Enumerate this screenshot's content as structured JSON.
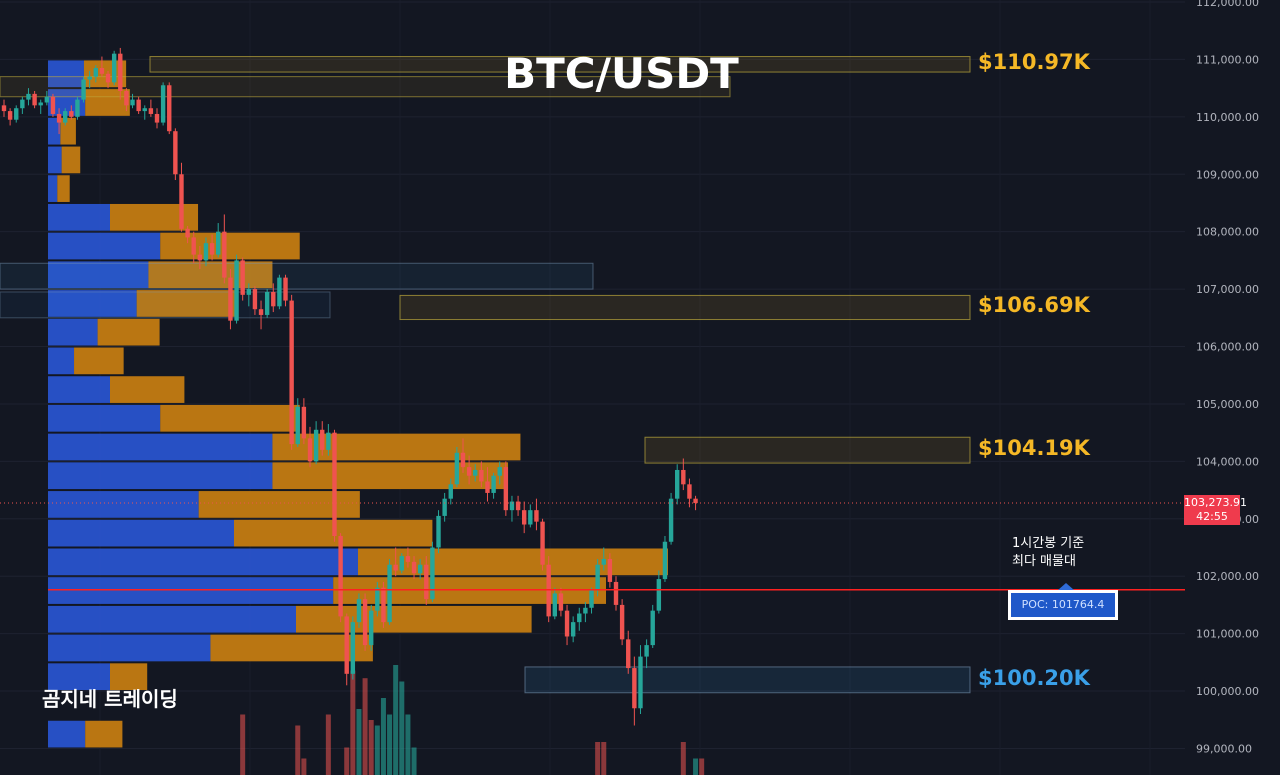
{
  "title": "BTC/USDT",
  "brand": "곰지네 트레이딩",
  "note_line1": "1시간봉 기준",
  "note_line2": "최다 매물대",
  "poc_label": "POC: 101764.4",
  "current_price": "103,273.91",
  "countdown": "42:55",
  "colors": {
    "background": "#131722",
    "up": "#26a69a",
    "down": "#ef5350",
    "buy_volume": "#2a56d6",
    "sell_volume": "#d8870f",
    "poc_line": "#ff2020",
    "resistance": "#f5b826",
    "support": "#3aa0e8"
  },
  "chart_data": {
    "type": "candlestick",
    "y_axis": {
      "min": 98700,
      "max": 112000,
      "ticks": [
        "112,000.00",
        "111,000.00",
        "110,000.00",
        "109,000.00",
        "108,000.00",
        "107,000.00",
        "106,000.00",
        "105,000.00",
        "104,000.00",
        "103,000.00",
        "102,000.00",
        "101,000.00",
        "100,000.00",
        "99,000.00"
      ]
    },
    "zones": [
      {
        "label": "$110.97K",
        "low": 110780,
        "high": 111050,
        "color": "resistance"
      },
      {
        "label": "$106.69K",
        "low": 106470,
        "high": 106890,
        "color": "resistance"
      },
      {
        "label": "$104.19K",
        "low": 103970,
        "high": 104420,
        "color": "resistance"
      },
      {
        "label": "$100.20K",
        "low": 99970,
        "high": 100420,
        "color": "support"
      }
    ],
    "poc_price": 101764.4,
    "last_price": 103273.91,
    "candles": [
      [
        110200,
        110300,
        110000,
        110100
      ],
      [
        110100,
        110150,
        109850,
        109950
      ],
      [
        109950,
        110200,
        109900,
        110150
      ],
      [
        110150,
        110350,
        110050,
        110300
      ],
      [
        110300,
        110500,
        110200,
        110400
      ],
      [
        110400,
        110450,
        110150,
        110200
      ],
      [
        110200,
        110300,
        110050,
        110250
      ],
      [
        110250,
        110450,
        110200,
        110350
      ],
      [
        110350,
        110400,
        110000,
        110050
      ],
      [
        110050,
        110150,
        109700,
        109900
      ],
      [
        109900,
        110150,
        109850,
        110100
      ],
      [
        110100,
        110200,
        109950,
        110000
      ],
      [
        110000,
        110350,
        109950,
        110300
      ],
      [
        110300,
        110700,
        110250,
        110650
      ],
      [
        110650,
        110800,
        110500,
        110700
      ],
      [
        110700,
        110900,
        110600,
        110850
      ],
      [
        110850,
        111050,
        110700,
        110750
      ],
      [
        110750,
        110800,
        110500,
        110600
      ],
      [
        110600,
        111150,
        110550,
        111100
      ],
      [
        111100,
        111200,
        110300,
        110450
      ],
      [
        110450,
        110500,
        110100,
        110200
      ],
      [
        110200,
        110400,
        110150,
        110300
      ],
      [
        110300,
        110350,
        110050,
        110100
      ],
      [
        110100,
        110200,
        109950,
        110150
      ],
      [
        110150,
        110300,
        110000,
        110050
      ],
      [
        110050,
        110150,
        109800,
        109900
      ],
      [
        109900,
        110600,
        109850,
        110550
      ],
      [
        110550,
        110600,
        109700,
        109750
      ],
      [
        109750,
        109800,
        108900,
        109000
      ],
      [
        109000,
        109200,
        108000,
        108050
      ],
      [
        108050,
        108100,
        107800,
        107900
      ],
      [
        107900,
        108000,
        107450,
        107600
      ],
      [
        107600,
        107750,
        107350,
        107500
      ],
      [
        107500,
        107900,
        107400,
        107800
      ],
      [
        107800,
        107950,
        107500,
        107600
      ],
      [
        107600,
        108150,
        107550,
        108000
      ],
      [
        108000,
        108300,
        107100,
        107200
      ],
      [
        107200,
        107350,
        106300,
        106450
      ],
      [
        106450,
        107600,
        106400,
        107500
      ],
      [
        107500,
        107550,
        106800,
        106900
      ],
      [
        106900,
        107100,
        106700,
        107000
      ],
      [
        107000,
        107050,
        106550,
        106650
      ],
      [
        106650,
        106800,
        106300,
        106550
      ],
      [
        106550,
        107000,
        106500,
        106950
      ],
      [
        106950,
        107100,
        106600,
        106700
      ],
      [
        106700,
        107250,
        106650,
        107200
      ],
      [
        107200,
        107250,
        106700,
        106800
      ],
      [
        106800,
        106900,
        104200,
        104300
      ],
      [
        104300,
        105100,
        104250,
        104950
      ],
      [
        104950,
        105100,
        104300,
        104400
      ],
      [
        104400,
        104600,
        103900,
        104000
      ],
      [
        104000,
        104700,
        103950,
        104550
      ],
      [
        104550,
        104700,
        104100,
        104200
      ],
      [
        104200,
        104650,
        104100,
        104500
      ],
      [
        104500,
        104550,
        102600,
        102700
      ],
      [
        102700,
        102750,
        101200,
        101300
      ],
      [
        101300,
        101350,
        100100,
        100300
      ],
      [
        100300,
        101300,
        100200,
        101200
      ],
      [
        101200,
        101700,
        101100,
        101600
      ],
      [
        101600,
        101700,
        100700,
        100800
      ],
      [
        100800,
        101500,
        100700,
        101400
      ],
      [
        101400,
        101900,
        101300,
        101800
      ],
      [
        101800,
        101900,
        101100,
        101200
      ],
      [
        101200,
        102300,
        101150,
        102200
      ],
      [
        102200,
        102500,
        102000,
        102100
      ],
      [
        102100,
        102400,
        102050,
        102350
      ],
      [
        102350,
        102500,
        102150,
        102250
      ],
      [
        102250,
        102350,
        101950,
        102050
      ],
      [
        102050,
        102300,
        101950,
        102200
      ],
      [
        102200,
        102350,
        101500,
        101600
      ],
      [
        101600,
        102600,
        101550,
        102500
      ],
      [
        102500,
        103150,
        102400,
        103050
      ],
      [
        103050,
        103450,
        102950,
        103350
      ],
      [
        103350,
        103700,
        103250,
        103600
      ],
      [
        103600,
        104250,
        103550,
        104150
      ],
      [
        104150,
        104400,
        103800,
        103900
      ],
      [
        103900,
        104100,
        103600,
        103750
      ],
      [
        103750,
        103950,
        103650,
        103850
      ],
      [
        103850,
        104000,
        103550,
        103650
      ],
      [
        103650,
        103900,
        103300,
        103450
      ],
      [
        103450,
        103800,
        103350,
        103750
      ],
      [
        103750,
        104000,
        103600,
        103900
      ],
      [
        103900,
        104000,
        103050,
        103150
      ],
      [
        103150,
        103400,
        102950,
        103300
      ],
      [
        103300,
        103400,
        103050,
        103150
      ],
      [
        103150,
        103300,
        102750,
        102900
      ],
      [
        102900,
        103250,
        102850,
        103150
      ],
      [
        103150,
        103350,
        102800,
        102950
      ],
      [
        102950,
        103000,
        102100,
        102200
      ],
      [
        102200,
        102350,
        101200,
        101300
      ],
      [
        101300,
        101800,
        101250,
        101700
      ],
      [
        101700,
        101800,
        101300,
        101400
      ],
      [
        101400,
        101500,
        100800,
        100950
      ],
      [
        100950,
        101300,
        100850,
        101200
      ],
      [
        101200,
        101450,
        101050,
        101350
      ],
      [
        101350,
        101550,
        101200,
        101450
      ],
      [
        101450,
        101800,
        101350,
        101750
      ],
      [
        101750,
        102300,
        101650,
        102200
      ],
      [
        102200,
        102500,
        102100,
        102300
      ],
      [
        102300,
        102400,
        101800,
        101900
      ],
      [
        101900,
        102000,
        101400,
        101500
      ],
      [
        101500,
        101600,
        100800,
        100900
      ],
      [
        100900,
        101050,
        100300,
        100400
      ],
      [
        100400,
        100600,
        99400,
        99700
      ],
      [
        99700,
        100800,
        99600,
        100600
      ],
      [
        100600,
        100900,
        100400,
        100800
      ],
      [
        100800,
        101500,
        100750,
        101400
      ],
      [
        101400,
        102100,
        101350,
        101950
      ],
      [
        101950,
        102700,
        101900,
        102600
      ],
      [
        102600,
        103450,
        102550,
        103350
      ],
      [
        103350,
        103950,
        103250,
        103850
      ],
      [
        103850,
        104050,
        103500,
        103600
      ],
      [
        103600,
        103700,
        103200,
        103350
      ],
      [
        103350,
        103400,
        103150,
        103274
      ]
    ],
    "volume_profile": [
      {
        "low": 110500,
        "high": 111000,
        "buy": 0.058,
        "sell": 0.068
      },
      {
        "low": 110000,
        "high": 110500,
        "buy": 0.06,
        "sell": 0.072
      },
      {
        "low": 109500,
        "high": 110000,
        "buy": 0.02,
        "sell": 0.025
      },
      {
        "low": 109000,
        "high": 109500,
        "buy": 0.022,
        "sell": 0.03
      },
      {
        "low": 108500,
        "high": 109000,
        "buy": 0.015,
        "sell": 0.02
      },
      {
        "low": 108000,
        "high": 108500,
        "buy": 0.1,
        "sell": 0.142
      },
      {
        "low": 107500,
        "high": 108000,
        "buy": 0.181,
        "sell": 0.225
      },
      {
        "low": 107000,
        "high": 107500,
        "buy": 0.162,
        "sell": 0.2
      },
      {
        "low": 106500,
        "high": 107000,
        "buy": 0.143,
        "sell": 0.163
      },
      {
        "low": 106000,
        "high": 106500,
        "buy": 0.08,
        "sell": 0.1
      },
      {
        "low": 105500,
        "high": 106000,
        "buy": 0.042,
        "sell": 0.08
      },
      {
        "low": 105000,
        "high": 105500,
        "buy": 0.1,
        "sell": 0.12
      },
      {
        "low": 104500,
        "high": 105000,
        "buy": 0.181,
        "sell": 0.225
      },
      {
        "low": 104000,
        "high": 104500,
        "buy": 0.362,
        "sell": 0.4
      },
      {
        "low": 103500,
        "high": 104000,
        "buy": 0.362,
        "sell": 0.38
      },
      {
        "low": 103000,
        "high": 103500,
        "buy": 0.243,
        "sell": 0.26
      },
      {
        "low": 102500,
        "high": 103000,
        "buy": 0.3,
        "sell": 0.32
      },
      {
        "low": 102000,
        "high": 102500,
        "buy": 0.5,
        "sell": 0.5
      },
      {
        "low": 101500,
        "high": 102000,
        "buy": 0.46,
        "sell": 0.44
      },
      {
        "low": 101000,
        "high": 101500,
        "buy": 0.4,
        "sell": 0.38
      },
      {
        "low": 100500,
        "high": 101000,
        "buy": 0.262,
        "sell": 0.262
      },
      {
        "low": 100000,
        "high": 100500,
        "buy": 0.1,
        "sell": 0.06
      },
      {
        "low": 99000,
        "high": 99500,
        "buy": 0.06,
        "sell": 0.06
      }
    ],
    "volume_bars": [
      {
        "i": 53,
        "v": 0.55,
        "up": false
      },
      {
        "i": 56,
        "v": 0.25,
        "up": false
      },
      {
        "i": 57,
        "v": 0.95,
        "up": false
      },
      {
        "i": 58,
        "v": 0.6,
        "up": true
      },
      {
        "i": 59,
        "v": 0.88,
        "up": false
      },
      {
        "i": 60,
        "v": 0.5,
        "up": false
      },
      {
        "i": 61,
        "v": 0.45,
        "up": true
      },
      {
        "i": 62,
        "v": 0.7,
        "up": true
      },
      {
        "i": 63,
        "v": 0.55,
        "up": true
      },
      {
        "i": 64,
        "v": 1.0,
        "up": true
      },
      {
        "i": 65,
        "v": 0.85,
        "up": true
      },
      {
        "i": 66,
        "v": 0.55,
        "up": true
      },
      {
        "i": 67,
        "v": 0.25,
        "up": true
      },
      {
        "i": 39,
        "v": 0.55,
        "up": false
      },
      {
        "i": 48,
        "v": 0.45,
        "up": false
      },
      {
        "i": 49,
        "v": 0.15,
        "up": false
      },
      {
        "i": 97,
        "v": 0.3,
        "up": false
      },
      {
        "i": 98,
        "v": 0.3,
        "up": false
      },
      {
        "i": 111,
        "v": 0.3,
        "up": false
      },
      {
        "i": 113,
        "v": 0.15,
        "up": true
      },
      {
        "i": 114,
        "v": 0.15,
        "up": false
      }
    ]
  }
}
